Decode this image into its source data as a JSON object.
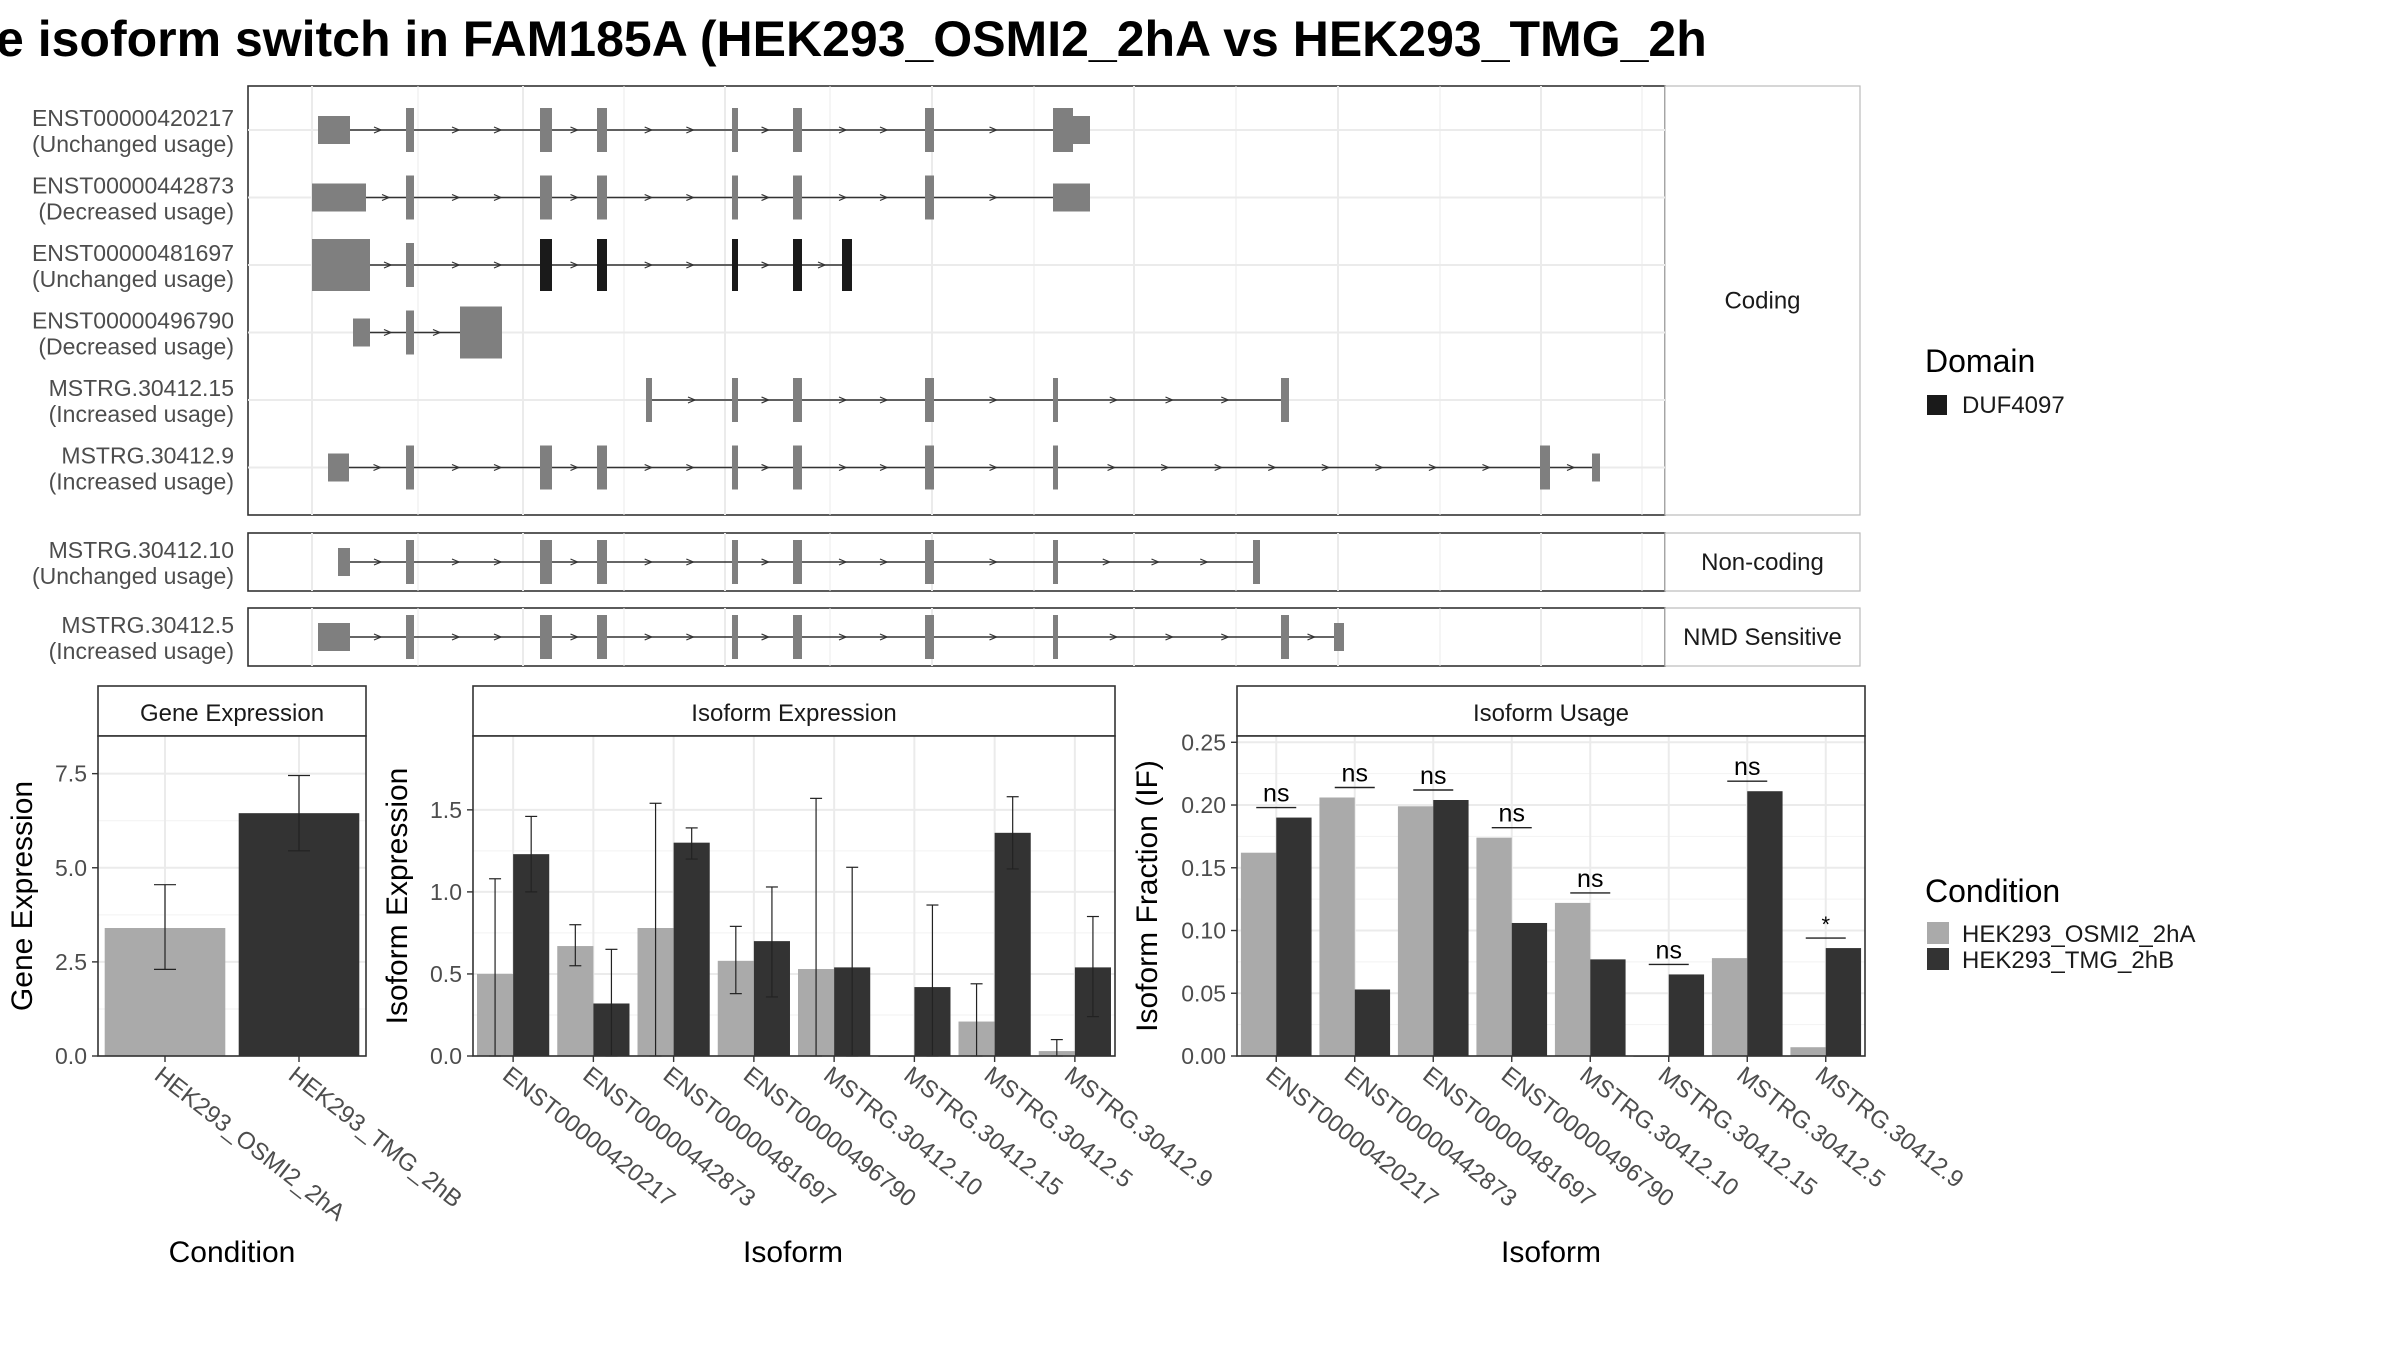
{
  "title": "e isoform switch in FAM185A (HEK293_OSMI2_2hA vs HEK293_TMG_2h",
  "colors": {
    "exon_gray": "#7f7f7f",
    "domain_black": "#1a1a1a",
    "cond_a": "#aaaaaa",
    "cond_b": "#333333",
    "strip_bg": "#ffffff",
    "panel_border": "#333333",
    "grid": "#ebebeb"
  },
  "structure": {
    "groups": [
      {
        "label": "Coding",
        "transcripts": [
          {
            "id": "ENST00000420217",
            "usage": "(Unchanged usage)"
          },
          {
            "id": "ENST00000442873",
            "usage": "(Decreased usage)"
          },
          {
            "id": "ENST00000481697",
            "usage": "(Unchanged usage)"
          },
          {
            "id": "ENST00000496790",
            "usage": "(Decreased usage)"
          },
          {
            "id": "MSTRG.30412.15",
            "usage": "(Increased usage)"
          },
          {
            "id": "MSTRG.30412.9",
            "usage": "(Increased usage)"
          }
        ]
      },
      {
        "label": "Non-coding",
        "transcripts": [
          {
            "id": "MSTRG.30412.10",
            "usage": "(Unchanged usage)"
          }
        ]
      },
      {
        "label": "NMD Sensitive",
        "transcripts": [
          {
            "id": "MSTRG.30412.5",
            "usage": "(Increased usage)"
          }
        ]
      }
    ]
  },
  "legend_domain": {
    "title": "Domain",
    "items": [
      {
        "label": "DUF4097",
        "color": "#1a1a1a"
      }
    ]
  },
  "legend_condition": {
    "title": "Condition",
    "items": [
      {
        "label": "HEK293_OSMI2_2hA",
        "color": "#aaaaaa"
      },
      {
        "label": "HEK293_TMG_2hB",
        "color": "#333333"
      }
    ]
  },
  "chart_data": [
    {
      "type": "bar",
      "title": "Gene Expression",
      "xlabel": "Condition",
      "ylabel": "Gene Expression",
      "categories": [
        "HEK293_OSMI2_2hA",
        "HEK293_TMG_2hB"
      ],
      "values": [
        3.4,
        6.45
      ],
      "err_low": [
        2.3,
        5.45
      ],
      "err_high": [
        4.55,
        7.45
      ],
      "ylim": [
        0,
        8.5
      ],
      "yticks": [
        "0.0",
        "2.5",
        "5.0",
        "7.5"
      ],
      "ytick_values": [
        0,
        2.5,
        5,
        7.5
      ]
    },
    {
      "type": "bar",
      "title": "Isoform Expression",
      "xlabel": "Isoform",
      "ylabel": "Isoform Expression",
      "categories": [
        "ENST00000420217",
        "ENST00000442873",
        "ENST00000481697",
        "ENST00000496790",
        "MSTRG.30412.10",
        "MSTRG.30412.15",
        "MSTRG.30412.5",
        "MSTRG.30412.9"
      ],
      "ylim": [
        0,
        1.95
      ],
      "yticks": [
        "0.0",
        "0.5",
        "1.0",
        "1.5"
      ],
      "ytick_values": [
        0,
        0.5,
        1,
        1.5
      ],
      "series": [
        {
          "name": "HEK293_OSMI2_2hA",
          "values": [
            0.5,
            0.67,
            0.78,
            0.58,
            0.53,
            0.0,
            0.21,
            0.03
          ],
          "err_low": [
            0,
            0.55,
            0,
            0.38,
            0,
            0,
            0,
            0
          ],
          "err_high": [
            1.08,
            0.8,
            1.54,
            0.79,
            1.57,
            0,
            0.44,
            0.1
          ]
        },
        {
          "name": "HEK293_TMG_2hB",
          "values": [
            1.23,
            0.32,
            1.3,
            0.7,
            0.54,
            0.42,
            1.36,
            0.54
          ],
          "err_low": [
            1.0,
            0,
            1.2,
            0.36,
            0,
            0,
            1.14,
            0.24
          ],
          "err_high": [
            1.46,
            0.65,
            1.39,
            1.03,
            1.15,
            0.92,
            1.58,
            0.85
          ]
        }
      ]
    },
    {
      "type": "bar",
      "title": "Isoform Usage",
      "xlabel": "Isoform",
      "ylabel": "Isoform Fraction (IF)",
      "categories": [
        "ENST00000420217",
        "ENST00000442873",
        "ENST00000481697",
        "ENST00000496790",
        "MSTRG.30412.10",
        "MSTRG.30412.15",
        "MSTRG.30412.5",
        "MSTRG.30412.9"
      ],
      "ylim": [
        0,
        0.255
      ],
      "yticks": [
        "0.00",
        "0.05",
        "0.10",
        "0.15",
        "0.20",
        "0.25"
      ],
      "ytick_values": [
        0,
        0.05,
        0.1,
        0.15,
        0.2,
        0.25
      ],
      "series": [
        {
          "name": "HEK293_OSMI2_2hA",
          "values": [
            0.162,
            0.206,
            0.199,
            0.174,
            0.122,
            0.0,
            0.078,
            0.007
          ]
        },
        {
          "name": "HEK293_TMG_2hB",
          "values": [
            0.19,
            0.053,
            0.204,
            0.106,
            0.077,
            0.065,
            0.211,
            0.086
          ]
        }
      ],
      "significance": [
        "ns",
        "ns",
        "ns",
        "ns",
        "ns",
        "ns",
        "ns",
        "*"
      ]
    }
  ]
}
